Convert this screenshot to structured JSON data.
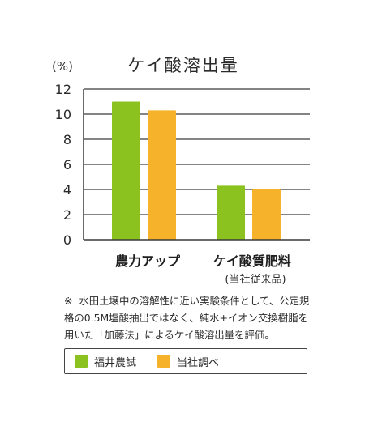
{
  "chart_data": {
    "type": "bar",
    "title": "ケイ酸溶出量",
    "ylabel": "(%)",
    "ylim": [
      0,
      12
    ],
    "yticks": [
      0,
      2,
      4,
      6,
      8,
      10,
      12
    ],
    "grid": true,
    "categories": [
      "農力アップ",
      "ケイ酸質肥料"
    ],
    "category_sublabels": [
      "",
      "(当社従来品)"
    ],
    "series": [
      {
        "name": "福井農試",
        "color": "#8cc21f",
        "values": [
          11.0,
          4.3
        ]
      },
      {
        "name": "当社調べ",
        "color": "#f6b22b",
        "values": [
          10.3,
          4.0
        ]
      }
    ]
  },
  "note": {
    "mark": "※",
    "text": "水田土壌中の溶解性に近い実験条件として、公定規格の0.5M塩酸抽出ではなく、純水+イオン交換樹脂を用いた「加藤法」によるケイ酸溶出量を評価。"
  },
  "legend": {
    "items": [
      {
        "label": "福井農試",
        "color": "#8cc21f"
      },
      {
        "label": "当社調べ",
        "color": "#f6b22b"
      }
    ]
  }
}
